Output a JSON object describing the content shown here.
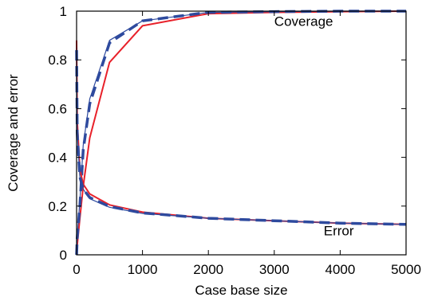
{
  "chart_data": {
    "type": "line",
    "xlabel": "Case base size",
    "ylabel": "Coverage and error",
    "xlim": [
      0,
      5000
    ],
    "ylim": [
      0,
      1
    ],
    "xticks": [
      0,
      1000,
      2000,
      3000,
      4000,
      5000
    ],
    "yticks": [
      0,
      0.2,
      0.4,
      0.6,
      0.8,
      1
    ],
    "grid": false,
    "annotations": [
      {
        "text": "Coverage",
        "x": 3000,
        "y": 0.94
      },
      {
        "text": "Error",
        "x": 3750,
        "y": 0.08
      }
    ],
    "series": [
      {
        "group": "coverage",
        "color": "#e8212a",
        "style": "solid",
        "x": [
          0,
          10,
          50,
          100,
          200,
          500,
          1000,
          2000,
          3000,
          4000,
          5000
        ],
        "y": [
          0.0,
          0.04,
          0.15,
          0.28,
          0.48,
          0.79,
          0.94,
          0.99,
          0.995,
          0.998,
          1.0
        ]
      },
      {
        "group": "coverage",
        "color": "#2e4a9e",
        "style": "thin",
        "x": [
          0,
          10,
          50,
          100,
          200,
          500,
          1000,
          2000,
          3000,
          4000,
          5000
        ],
        "y": [
          0.0,
          0.08,
          0.22,
          0.45,
          0.64,
          0.88,
          0.96,
          0.995,
          0.998,
          1.0,
          1.0
        ]
      },
      {
        "group": "coverage",
        "color": "#2e4a9e",
        "style": "dashed",
        "x": [
          0,
          10,
          50,
          100,
          200,
          500,
          1000,
          2000,
          3000,
          4000,
          5000
        ],
        "y": [
          0.0,
          0.07,
          0.2,
          0.43,
          0.62,
          0.87,
          0.96,
          0.995,
          0.998,
          1.0,
          1.0
        ]
      },
      {
        "group": "error",
        "color": "#e8212a",
        "style": "solid",
        "x": [
          0,
          10,
          50,
          100,
          200,
          500,
          1000,
          2000,
          3000,
          4000,
          5000
        ],
        "y": [
          0.88,
          0.55,
          0.35,
          0.29,
          0.25,
          0.205,
          0.175,
          0.15,
          0.14,
          0.13,
          0.125
        ]
      },
      {
        "group": "error",
        "color": "#2e4a9e",
        "style": "thin",
        "x": [
          0,
          10,
          50,
          100,
          200,
          500,
          1000,
          2000,
          3000,
          4000,
          5000
        ],
        "y": [
          0.85,
          0.5,
          0.32,
          0.27,
          0.23,
          0.195,
          0.17,
          0.15,
          0.14,
          0.13,
          0.125
        ]
      },
      {
        "group": "error",
        "color": "#2e4a9e",
        "style": "dashed",
        "x": [
          0,
          10,
          50,
          100,
          200,
          500,
          1000,
          2000,
          3000,
          4000,
          5000
        ],
        "y": [
          0.84,
          0.5,
          0.32,
          0.27,
          0.235,
          0.198,
          0.172,
          0.15,
          0.14,
          0.13,
          0.125
        ]
      }
    ]
  }
}
